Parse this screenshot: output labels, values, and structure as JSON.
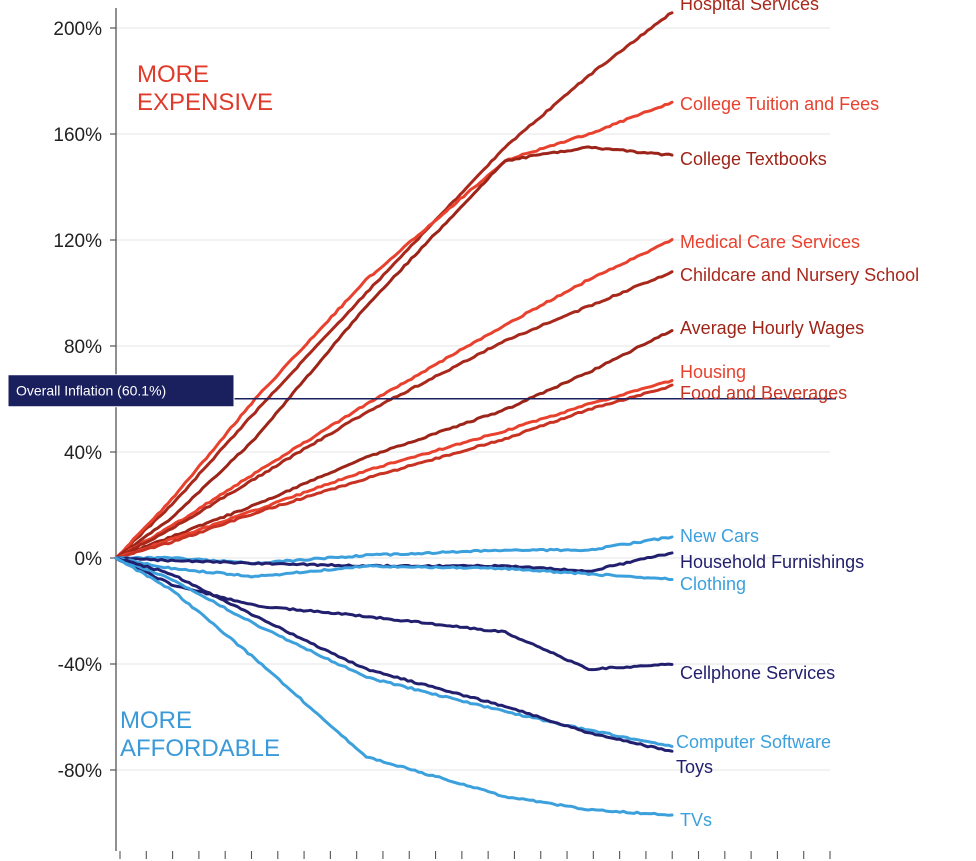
{
  "chart_data": {
    "type": "line",
    "title": "",
    "xlabel": "",
    "ylabel": "",
    "ylim": [
      -100,
      205
    ],
    "grid": true,
    "x_ticks": 28,
    "y_ticks": [
      {
        "value": 200,
        "label": "200%"
      },
      {
        "value": 160,
        "label": "160%"
      },
      {
        "value": 120,
        "label": "120%"
      },
      {
        "value": 80,
        "label": "80%"
      },
      {
        "value": 40,
        "label": "40%"
      },
      {
        "value": 0,
        "label": "0%"
      },
      {
        "value": -40,
        "label": "-40%"
      },
      {
        "value": -80,
        "label": "-80%"
      }
    ],
    "reference_line": {
      "value": 60.1,
      "label": "Overall Inflation (60.1%)",
      "color": "#1a1f5e"
    },
    "annotations": [
      {
        "text": "MORE\nEXPENSIVE",
        "color": "#e03a2a"
      },
      {
        "text": "MORE\nAFFORDABLE",
        "color": "#3a9ad9"
      }
    ],
    "x_points": [
      0,
      0.1,
      0.25,
      0.45,
      0.7,
      0.85,
      1
    ],
    "series": [
      {
        "name": "Hospital Services",
        "color": "#a8281c",
        "values": [
          0,
          20,
          55,
          100,
          155,
          182,
          206
        ]
      },
      {
        "name": "College Tuition and Fees",
        "color": "#e8412e",
        "values": [
          0,
          22,
          60,
          105,
          150,
          160,
          172
        ]
      },
      {
        "name": "College Textbooks",
        "color": "#9c2418",
        "values": [
          0,
          15,
          45,
          95,
          150,
          155,
          152
        ]
      },
      {
        "name": "Medical Care Services",
        "color": "#e8412e",
        "values": [
          0,
          12,
          32,
          58,
          88,
          105,
          120
        ]
      },
      {
        "name": "Childcare and Nursery School",
        "color": "#a8281c",
        "values": [
          0,
          11,
          30,
          55,
          82,
          95,
          108
        ]
      },
      {
        "name": "Average Hourly Wages",
        "color": "#9c2418",
        "values": [
          0,
          8,
          20,
          38,
          56,
          70,
          86
        ]
      },
      {
        "name": "Housing",
        "color": "#e8412e",
        "values": [
          0,
          7,
          18,
          33,
          48,
          58,
          67
        ]
      },
      {
        "name": "Food and Beverages",
        "color": "#c83222",
        "values": [
          0,
          6,
          17,
          30,
          45,
          56,
          65
        ]
      },
      {
        "name": "New Cars",
        "color": "#3ca0dd",
        "values": [
          0,
          0,
          -2,
          1,
          3,
          3,
          8
        ]
      },
      {
        "name": "Household Furnishings",
        "color": "#22206e",
        "values": [
          0,
          -1,
          -2,
          -3,
          -3,
          -5,
          2
        ]
      },
      {
        "name": "Clothing",
        "color": "#3ca0dd",
        "values": [
          0,
          -4,
          -7,
          -3,
          -4,
          -6,
          -8
        ]
      },
      {
        "name": "Cellphone Services",
        "color": "#22206e",
        "values": [
          0,
          -10,
          -18,
          -22,
          -28,
          -42,
          -40
        ]
      },
      {
        "name": "Computer Software",
        "color": "#3ca0dd",
        "values": [
          0,
          -8,
          -25,
          -45,
          -58,
          -65,
          -71
        ]
      },
      {
        "name": "Toys",
        "color": "#22206e",
        "values": [
          0,
          -6,
          -22,
          -42,
          -56,
          -66,
          -73
        ]
      },
      {
        "name": "TVs",
        "color": "#3ca0dd",
        "values": [
          0,
          -12,
          -38,
          -75,
          -90,
          -95,
          -97
        ]
      }
    ]
  }
}
